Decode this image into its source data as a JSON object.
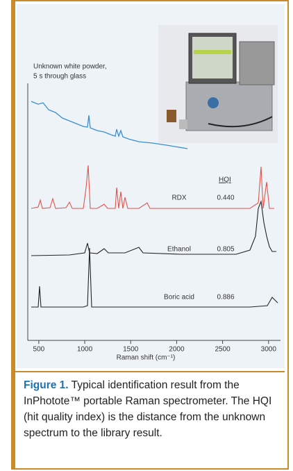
{
  "figure": {
    "annotation": [
      "Unknown white powder,",
      "5 s through glass"
    ],
    "hqi_header": "HQI",
    "library": [
      {
        "name": "RDX",
        "hqi": "0.440"
      },
      {
        "name": "Ethanol",
        "hqi": "0.805"
      },
      {
        "name": "Boric acid",
        "hqi": "0.886"
      }
    ],
    "xlim": [
      380,
      3130
    ],
    "xticks": [
      500,
      1000,
      1500,
      2000,
      2500,
      3000
    ],
    "xlabel": "Raman shift (cm⁻¹)"
  },
  "caption": {
    "label": "Figure 1.",
    "text": "Typical identification result from the InPhotote™ portable Raman spectrometer. The HQI (hit quality index) is the distance from the unknown spectrum to the library result."
  }
}
